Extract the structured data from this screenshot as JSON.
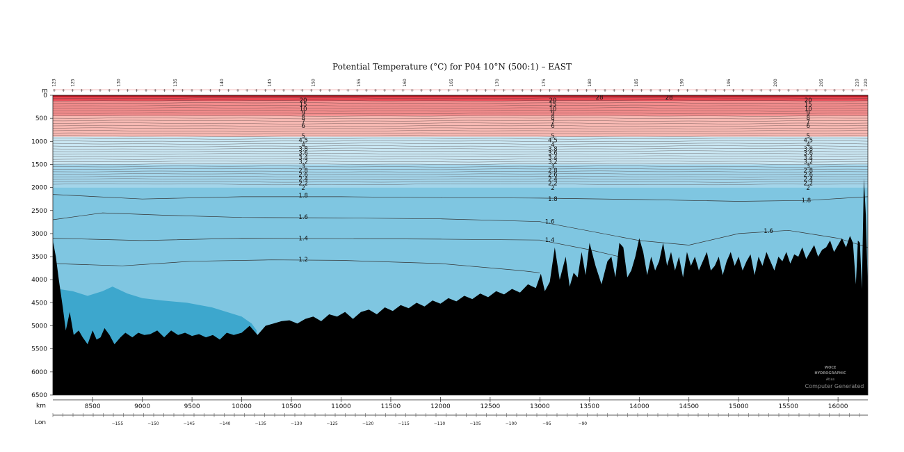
{
  "chart_data": {
    "type": "heatmap",
    "title": "Potential Temperature (°C) for P04 10°N (500:1) – EAST",
    "y_unit": "m",
    "x_unit": "km",
    "lon_label": "Lon",
    "ylim": [
      0,
      6500
    ],
    "xlim": [
      8100,
      16300
    ],
    "y_ticks": [
      0,
      500,
      1000,
      1500,
      2000,
      2500,
      3000,
      3500,
      4000,
      4500,
      5000,
      5500,
      6000,
      6500
    ],
    "x_ticks": [
      8500,
      9000,
      9500,
      10000,
      10500,
      11000,
      11500,
      12000,
      12500,
      13000,
      13500,
      14000,
      14500,
      15000,
      15500,
      16000
    ],
    "lon_ticks": [
      {
        "km": 8450,
        "label": "−155"
      },
      {
        "km": 8810,
        "label": "−150"
      },
      {
        "km": 9170,
        "label": "−145"
      },
      {
        "km": 9530,
        "label": "−140"
      },
      {
        "km": 9890,
        "label": "−135"
      },
      {
        "km": 10250,
        "label": "−130"
      },
      {
        "km": 10610,
        "label": "−125"
      },
      {
        "km": 10970,
        "label": "−120"
      },
      {
        "km": 11330,
        "label": "−115"
      },
      {
        "km": 11690,
        "label": "−110"
      },
      {
        "km": 12050,
        "label": "−105"
      },
      {
        "km": 12410,
        "label": "−100"
      },
      {
        "km": 12770,
        "label": "−95"
      },
      {
        "km": 13130,
        "label": "−90"
      }
    ],
    "station_labels": [
      {
        "km": 8110,
        "label": "123"
      },
      {
        "km": 8300,
        "label": "125"
      },
      {
        "km": 8760,
        "label": "130"
      },
      {
        "km": 9330,
        "label": "135"
      },
      {
        "km": 9800,
        "label": "140"
      },
      {
        "km": 10280,
        "label": "145"
      },
      {
        "km": 10720,
        "label": "150"
      },
      {
        "km": 11180,
        "label": "155"
      },
      {
        "km": 11640,
        "label": "160"
      },
      {
        "km": 12110,
        "label": "165"
      },
      {
        "km": 12570,
        "label": "170"
      },
      {
        "km": 13040,
        "label": "175"
      },
      {
        "km": 13500,
        "label": "180"
      },
      {
        "km": 13970,
        "label": "185"
      },
      {
        "km": 14430,
        "label": "190"
      },
      {
        "km": 14900,
        "label": "195"
      },
      {
        "km": 15370,
        "label": "200"
      },
      {
        "km": 15830,
        "label": "205"
      },
      {
        "km": 16190,
        "label": "210"
      },
      {
        "km": 16280,
        "label": "220"
      }
    ],
    "color_bands": [
      {
        "from_depth": 0,
        "to_depth": 40,
        "color": "#b0131c"
      },
      {
        "from_depth": 40,
        "to_depth": 120,
        "color": "#e84a55"
      },
      {
        "from_depth": 120,
        "to_depth": 450,
        "color": "#f28c8c"
      },
      {
        "from_depth": 450,
        "to_depth": 900,
        "color": "#f7b9b3"
      },
      {
        "from_depth": 900,
        "to_depth": 1500,
        "color": "#c9e6f2"
      },
      {
        "from_depth": 1500,
        "to_depth": 2000,
        "color": "#a4d5ea"
      },
      {
        "from_depth": 2000,
        "to_depth": 6500,
        "color": "#7fc6e1"
      },
      {
        "deep_cold_pool": true,
        "color": "#3da7cd"
      }
    ],
    "contours": [
      {
        "level": "1.8",
        "km": 10620,
        "depth": 2170,
        "label_km": [
          10620,
          13130,
          15680
        ],
        "label_depth": [
          2170,
          2250,
          2280
        ]
      },
      {
        "level": "1.6",
        "km": 10620,
        "depth": 2640,
        "label_km": [
          10620,
          13100,
          15300
        ],
        "label_depth": [
          2640,
          2740,
          2940
        ]
      },
      {
        "level": "1.4",
        "km": 10620,
        "depth": 3100,
        "label_km": [
          10620,
          13100
        ],
        "label_depth": [
          3100,
          3140
        ]
      },
      {
        "level": "1.2",
        "km": 10620,
        "depth": 3560,
        "label_km": [
          10620
        ],
        "label_depth": [
          3560
        ]
      }
    ],
    "profile_labels": [
      {
        "km": 10620,
        "levels": [
          "20",
          "15",
          "10",
          "9",
          "8",
          "7",
          "6",
          "5",
          "4.5",
          "4",
          "3.8",
          "3.6",
          "3.4",
          "3.2",
          "3",
          "2.8",
          "2.6",
          "2.4",
          "2.2",
          "2"
        ]
      },
      {
        "km": 13130,
        "levels": [
          "20",
          "15",
          "10",
          "9",
          "8",
          "7",
          "6",
          "5",
          "4.5",
          "4",
          "3.8",
          "3.6",
          "3.4",
          "3.2",
          "3",
          "2.8",
          "2.6",
          "2.4",
          "2.2",
          "2"
        ]
      },
      {
        "km": 15700,
        "levels": [
          "20",
          "15",
          "10",
          "9",
          "8",
          "7",
          "6",
          "5",
          "4.5",
          "4",
          "3.8",
          "3.6",
          "3.4",
          "3.2",
          "3",
          "2.8",
          "2.6",
          "2.4",
          "2.2",
          "2"
        ]
      }
    ],
    "surface_labels": [
      {
        "km": 13600,
        "label": "28"
      },
      {
        "km": 14300,
        "label": "28"
      }
    ],
    "bathymetry": {
      "km": [
        8100,
        8130,
        8160,
        8200,
        8230,
        8270,
        8310,
        8360,
        8400,
        8450,
        8500,
        8540,
        8580,
        8620,
        8670,
        8720,
        8780,
        8830,
        8900,
        8960,
        9020,
        9080,
        9150,
        9220,
        9290,
        9360,
        9430,
        9500,
        9570,
        9640,
        9710,
        9780,
        9850,
        9920,
        10000,
        10080,
        10160,
        10240,
        10320,
        10400,
        10480,
        10560,
        10640,
        10720,
        10800,
        10880,
        10960,
        11040,
        11120,
        11200,
        11280,
        11360,
        11440,
        11520,
        11600,
        11680,
        11760,
        11840,
        11920,
        12000,
        12080,
        12160,
        12240,
        12320,
        12400,
        12480,
        12560,
        12640,
        12720,
        12800,
        12880,
        12960,
        13010,
        13050,
        13100,
        13150,
        13200,
        13260,
        13300,
        13340,
        13380,
        13420,
        13460,
        13500,
        13560,
        13620,
        13680,
        13720,
        13760,
        13800,
        13840,
        13880,
        13920,
        13960,
        14000,
        14040,
        14080,
        14120,
        14160,
        14200,
        14240,
        14280,
        14320,
        14360,
        14400,
        14440,
        14480,
        14520,
        14560,
        14600,
        14640,
        14680,
        14720,
        14760,
        14800,
        14840,
        14880,
        14920,
        14960,
        15000,
        15040,
        15080,
        15120,
        15160,
        15200,
        15240,
        15280,
        15320,
        15360,
        15400,
        15440,
        15480,
        15520,
        15560,
        15600,
        15640,
        15680,
        15720,
        15760,
        15800,
        15840,
        15880,
        15920,
        15960,
        16000,
        16040,
        16080,
        16120,
        16150,
        16180,
        16200,
        16220,
        16240,
        16260,
        16280,
        16300
      ],
      "depth": [
        3150,
        3500,
        4000,
        4600,
        5100,
        4700,
        5200,
        5100,
        5250,
        5400,
        5100,
        5300,
        5250,
        5050,
        5200,
        5400,
        5250,
        5150,
        5250,
        5150,
        5200,
        5180,
        5100,
        5250,
        5100,
        5200,
        5150,
        5220,
        5180,
        5250,
        5200,
        5300,
        5150,
        5200,
        5150,
        5000,
        5200,
        5000,
        4950,
        4900,
        4880,
        4950,
        4850,
        4800,
        4900,
        4750,
        4800,
        4700,
        4850,
        4700,
        4650,
        4750,
        4600,
        4680,
        4550,
        4620,
        4500,
        4580,
        4450,
        4520,
        4400,
        4470,
        4350,
        4420,
        4300,
        4380,
        4250,
        4320,
        4200,
        4280,
        4100,
        4180,
        3870,
        4250,
        4050,
        3300,
        4000,
        3500,
        4150,
        3850,
        3950,
        3400,
        3900,
        3200,
        3700,
        4100,
        3600,
        3500,
        3950,
        3200,
        3300,
        3950,
        3800,
        3500,
        3100,
        3400,
        3900,
        3500,
        3800,
        3600,
        3200,
        3700,
        3400,
        3800,
        3500,
        3950,
        3400,
        3700,
        3500,
        3800,
        3600,
        3400,
        3800,
        3700,
        3500,
        3900,
        3600,
        3400,
        3700,
        3500,
        3800,
        3600,
        3450,
        3900,
        3500,
        3700,
        3400,
        3600,
        3800,
        3500,
        3600,
        3400,
        3650,
        3450,
        3500,
        3300,
        3550,
        3400,
        3250,
        3500,
        3350,
        3300,
        3150,
        3400,
        3250,
        3100,
        3300,
        3050,
        3200,
        4100,
        3150,
        3200,
        4200,
        1800,
        2600,
        4200
      ]
    },
    "grid": false,
    "legend": "none"
  },
  "watermark": {
    "line1": "WOCE",
    "line2": "HYDROGRAPHIC",
    "line3": "Atlas",
    "line4": "Computer Generated"
  }
}
